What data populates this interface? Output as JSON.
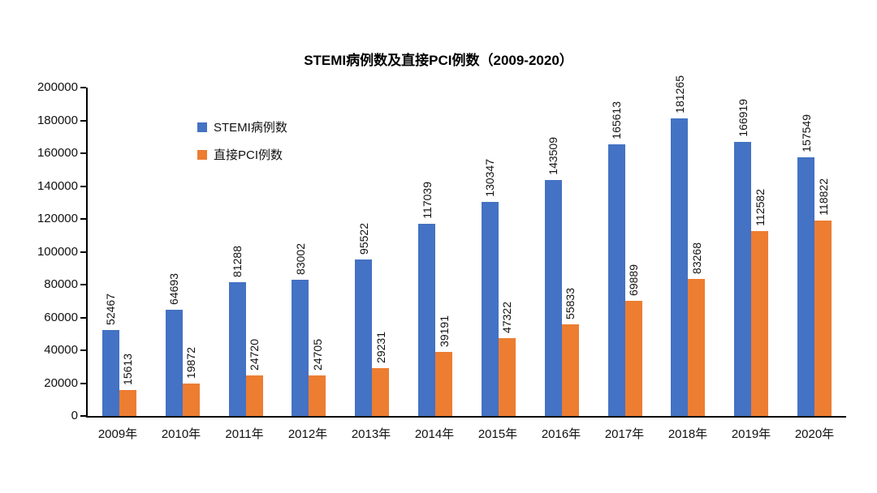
{
  "title": "STEMI病例数及直接PCI例数（2009-2020）",
  "colors": {
    "stemi_blue": "#4472C4",
    "pci_orange": "#ED7D31",
    "axis": "#000000",
    "background": "#FFFFFF"
  },
  "chart_data": {
    "type": "bar",
    "title": "STEMI病例数及直接PCI例数（2009-2020）",
    "categories": [
      "2009年",
      "2010年",
      "2011年",
      "2012年",
      "2013年",
      "2014年",
      "2015年",
      "2016年",
      "2017年",
      "2018年",
      "2019年",
      "2020年"
    ],
    "series": [
      {
        "name": "STEMI病例数",
        "color": "#4472C4",
        "values": [
          52467,
          64693,
          81288,
          83002,
          95522,
          117039,
          130347,
          143509,
          165613,
          181265,
          166919,
          157549
        ]
      },
      {
        "name": "直接PCI例数",
        "color": "#ED7D31",
        "values": [
          15613,
          19872,
          24720,
          24705,
          29231,
          39191,
          47322,
          55833,
          69889,
          83268,
          112582,
          118822
        ]
      }
    ],
    "xlabel": "",
    "ylabel": "",
    "ylim": [
      0,
      200000
    ],
    "ytick_step": 20000,
    "ytick_labels": [
      "0",
      "20000",
      "40000",
      "60000",
      "80000",
      "100000",
      "120000",
      "140000",
      "160000",
      "180000",
      "200000"
    ],
    "grid": false,
    "legend_position": "inside-upper-left",
    "data_labels": "rotated-vertical-above-bars"
  }
}
